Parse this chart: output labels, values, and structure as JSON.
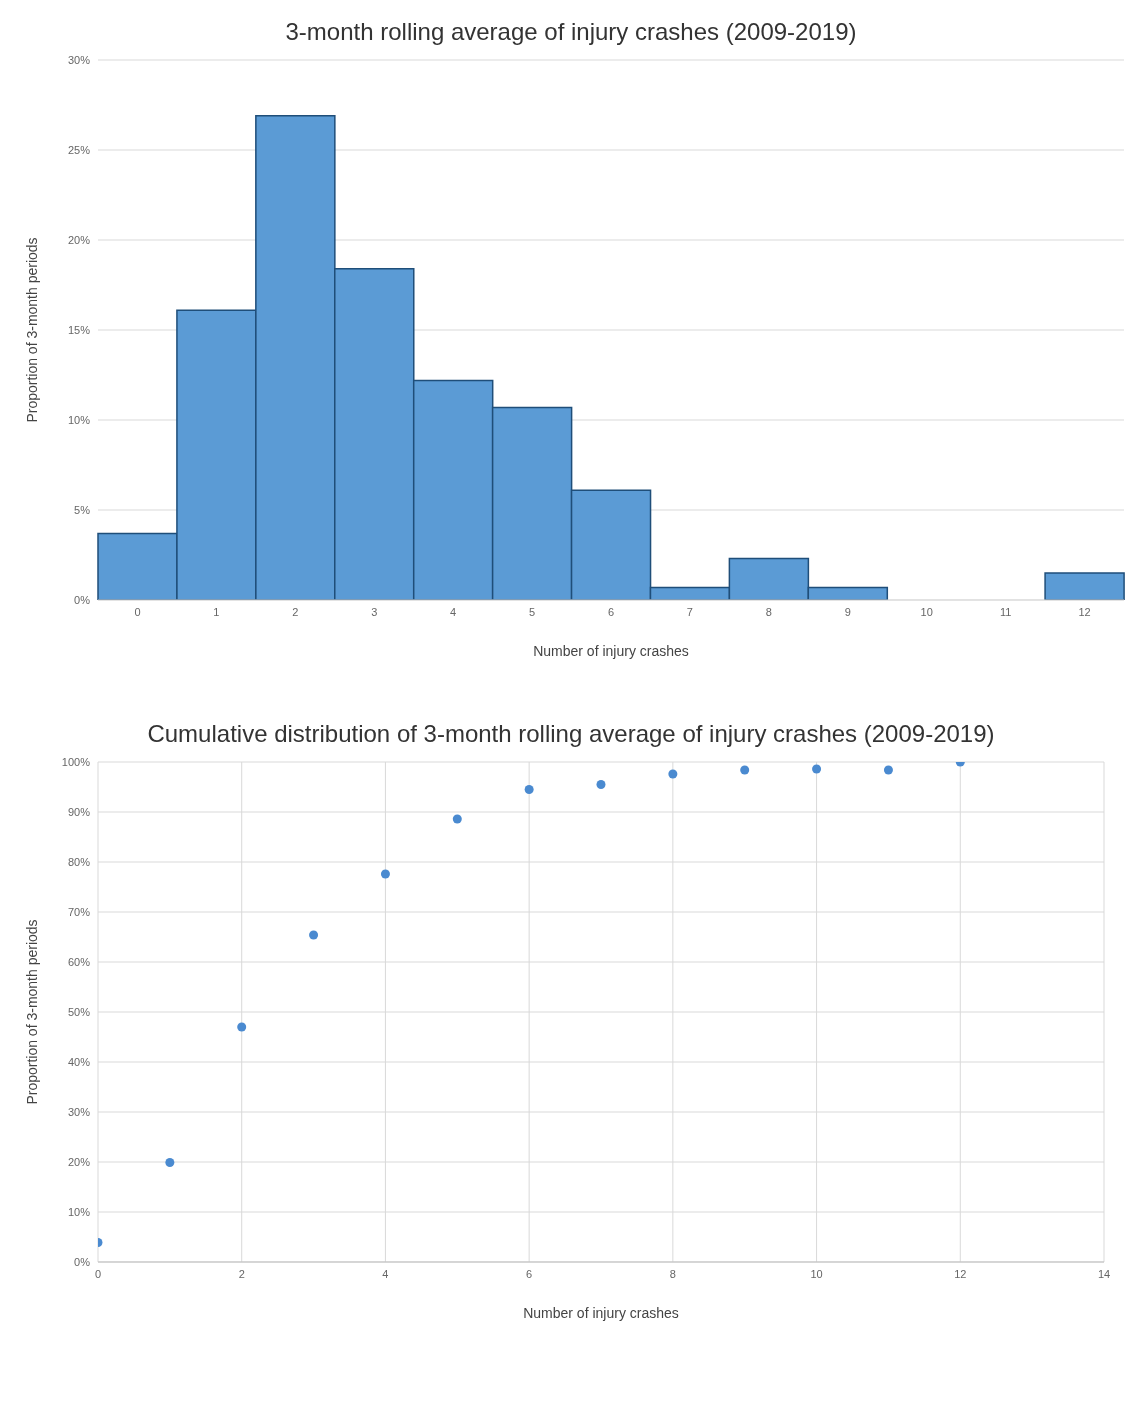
{
  "chart_data": [
    {
      "type": "bar",
      "title": "3-month rolling average of injury crashes (2009-2019)",
      "xlabel": "Number of injury crashes",
      "ylabel": "Proportion of 3-month periods",
      "categories": [
        "0",
        "1",
        "2",
        "3",
        "4",
        "5",
        "6",
        "7",
        "8",
        "9",
        "10",
        "11",
        "12"
      ],
      "values": [
        3.7,
        16.1,
        26.9,
        18.4,
        12.2,
        10.7,
        6.1,
        0.7,
        2.3,
        0.7,
        0,
        0,
        1.5
      ],
      "color": "#5b9bd5",
      "ylim": [
        0,
        30
      ],
      "yticks": [
        {
          "value": 0,
          "label": "0%"
        },
        {
          "value": 5,
          "label": "5%"
        },
        {
          "value": 10,
          "label": "10%"
        },
        {
          "value": 15,
          "label": "15%"
        },
        {
          "value": 20,
          "label": "20%"
        },
        {
          "value": 25,
          "label": "25%"
        },
        {
          "value": 30,
          "label": "30%"
        }
      ],
      "grid": "y"
    },
    {
      "type": "scatter",
      "title": "Cumulative distribution of 3-month rolling average of injury crashes (2009-2019)",
      "xlabel": "Number of injury crashes",
      "ylabel": "Proportion of 3-month periods",
      "x": [
        0,
        1,
        2,
        3,
        4,
        5,
        6,
        7,
        8,
        9,
        10,
        11,
        12
      ],
      "values": [
        3.9,
        19.9,
        47.0,
        65.4,
        77.6,
        88.6,
        94.5,
        95.5,
        97.6,
        98.4,
        98.6,
        98.4,
        100
      ],
      "color": "#4a8ad0",
      "marker": "circle",
      "xlim": [
        0,
        14
      ],
      "xticks": [
        0,
        2,
        4,
        6,
        8,
        10,
        12,
        14
      ],
      "ylim": [
        0,
        100
      ],
      "yticks": [
        {
          "value": 0,
          "label": "0%"
        },
        {
          "value": 10,
          "label": "10%"
        },
        {
          "value": 20,
          "label": "20%"
        },
        {
          "value": 30,
          "label": "30%"
        },
        {
          "value": 40,
          "label": "40%"
        },
        {
          "value": 50,
          "label": "50%"
        },
        {
          "value": 60,
          "label": "60%"
        },
        {
          "value": 70,
          "label": "70%"
        },
        {
          "value": 80,
          "label": "80%"
        },
        {
          "value": 90,
          "label": "90%"
        },
        {
          "value": 100,
          "label": "100%"
        }
      ],
      "grid": true
    }
  ]
}
